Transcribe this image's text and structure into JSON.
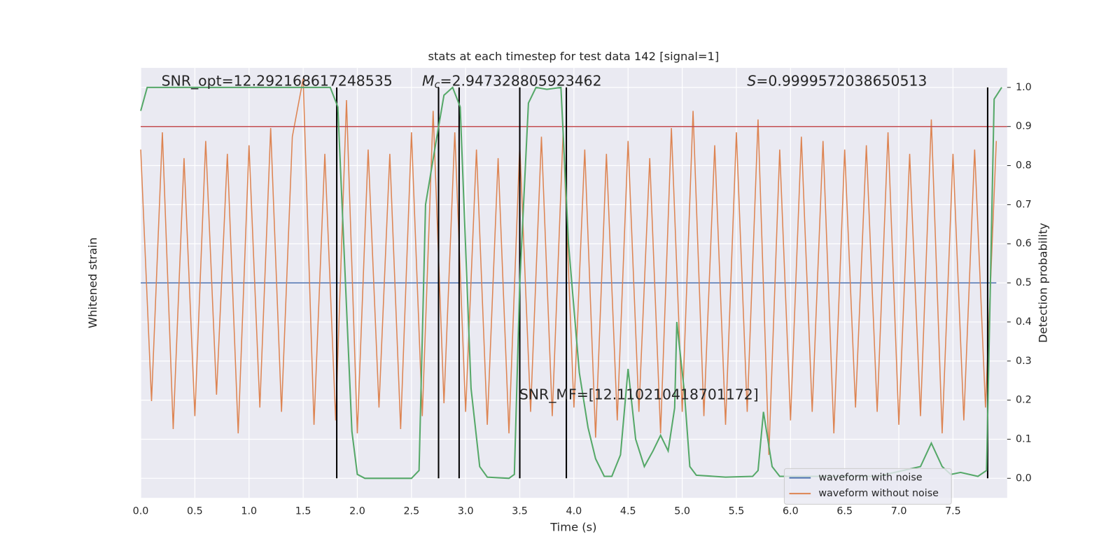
{
  "chart_data": {
    "type": "line",
    "title": "stats at each timestep for test data 142 [signal=1]",
    "xlabel": "Time (s)",
    "ylabel": "Whitened strain",
    "y2label": "Detection probability",
    "xlim": [
      0,
      8
    ],
    "ylim": [
      -1,
      1
    ],
    "y2lim": [
      -0.05,
      1.05
    ],
    "xticks": [
      {
        "value": 0,
        "label": "0.0"
      },
      0.5,
      {
        "value": 1,
        "label": "1.0"
      },
      1.5,
      {
        "value": 2,
        "label": "2.0"
      },
      2.5,
      {
        "value": 3,
        "label": "3.0"
      },
      3.5,
      {
        "value": 4,
        "label": "4.0"
      },
      4.5,
      {
        "value": 5,
        "label": "5.0"
      },
      5.5,
      {
        "value": 6,
        "label": "6.0"
      },
      6.5,
      {
        "value": 7,
        "label": "7.0"
      },
      7.5
    ],
    "y2ticks": [
      {
        "value": 0,
        "label": "0.0"
      },
      0.1,
      0.2,
      0.3,
      0.4,
      0.5,
      0.6,
      0.7,
      0.8,
      0.9,
      {
        "value": 1,
        "label": "1.0"
      }
    ],
    "grid": true,
    "background": "#eaeaf2",
    "legend": "lower right",
    "x": [
      0,
      0.1,
      0.2,
      0.3,
      0.4,
      0.5,
      0.6,
      0.7,
      0.8,
      0.9,
      1,
      1.1,
      1.2,
      1.3,
      1.4,
      1.5,
      1.6,
      1.7,
      1.8,
      1.9,
      2,
      2.1,
      2.2,
      2.3,
      2.4,
      2.5,
      2.6,
      2.7,
      2.8,
      2.9,
      3,
      3.1,
      3.2,
      3.3,
      3.4,
      3.5,
      3.6,
      3.7,
      3.8,
      3.9,
      4,
      4.1,
      4.2,
      4.3,
      4.4,
      4.5,
      4.6,
      4.7,
      4.8,
      4.9,
      5,
      5.1,
      5.2,
      5.3,
      5.4,
      5.5,
      5.6,
      5.7,
      5.8,
      5.9,
      6,
      6.1,
      6.2,
      6.3,
      6.4,
      6.5,
      6.6,
      6.7,
      6.8,
      6.9,
      7,
      7.1,
      7.2,
      7.3,
      7.4,
      7.5,
      7.6,
      7.7,
      7.8,
      7.9
    ],
    "series": [
      {
        "name": "waveform with noise",
        "color": "#4c72b0",
        "values": [
          0,
          0,
          0,
          0,
          0,
          0,
          0,
          0,
          0,
          0,
          0,
          0,
          0,
          0,
          0,
          0,
          0,
          0,
          0,
          0,
          0,
          0,
          0,
          0,
          0,
          0,
          0,
          0,
          0,
          0,
          0,
          0,
          0,
          0,
          0,
          0,
          0,
          0,
          0,
          0,
          0,
          0,
          0,
          0,
          0,
          0,
          0,
          0,
          0,
          0,
          0,
          0,
          0,
          0,
          0,
          0,
          0,
          0,
          0,
          0,
          0,
          0,
          0,
          0,
          0,
          0,
          0,
          0,
          0,
          0,
          0,
          0,
          0,
          0,
          0,
          0,
          0,
          0,
          0,
          0
        ]
      },
      {
        "name": "waveform without noise",
        "color": "#dd8452",
        "values": [
          0.62,
          -0.55,
          0.7,
          -0.68,
          0.58,
          -0.62,
          0.66,
          -0.52,
          0.6,
          -0.7,
          0.64,
          -0.58,
          0.72,
          -0.6,
          0.68,
          0.95,
          -0.66,
          0.6,
          -0.64,
          0.85,
          -0.7,
          0.62,
          -0.58,
          0.6,
          -0.68,
          0.7,
          -0.62,
          0.8,
          -0.56,
          0.7,
          -0.6,
          0.62,
          -0.66,
          0.58,
          -0.7,
          0.64,
          -0.6,
          0.68,
          -0.62,
          0.7,
          -0.58,
          0.62,
          -0.72,
          0.6,
          -0.64,
          0.66,
          -0.6,
          0.58,
          -0.7,
          0.72,
          -0.6,
          0.8,
          -0.62,
          0.64,
          -0.66,
          0.7,
          -0.6,
          0.76,
          -0.8,
          0.62,
          -0.64,
          0.68,
          -0.6,
          0.66,
          -0.7,
          0.62,
          -0.58,
          0.64,
          -0.6,
          0.7,
          -0.66,
          0.6,
          -0.62,
          0.76,
          -0.7,
          0.6,
          -0.64,
          0.62,
          -0.58,
          0.66
        ]
      }
    ],
    "probability": {
      "color": "#55a868",
      "x": [
        0,
        0.06,
        1.75,
        1.82,
        1.95,
        2.0,
        2.07,
        2.5,
        2.57,
        2.63,
        2.72,
        2.8,
        2.88,
        2.95,
        3.05,
        3.13,
        3.2,
        3.4,
        3.45,
        3.5,
        3.58,
        3.65,
        3.75,
        3.88,
        3.95,
        4.05,
        4.13,
        4.2,
        4.28,
        4.35,
        4.43,
        4.5,
        4.57,
        4.65,
        4.73,
        4.8,
        4.87,
        4.93,
        4.95,
        5.02,
        5.07,
        5.13,
        5.4,
        5.65,
        5.7,
        5.75,
        5.83,
        5.9,
        6.8,
        7.2,
        7.3,
        7.4,
        7.48,
        7.57,
        7.73,
        7.81,
        7.88,
        7.95
      ],
      "values": [
        0.94,
        1.0,
        1.0,
        0.95,
        0.12,
        0.01,
        0.0,
        0.0,
        0.02,
        0.7,
        0.85,
        0.98,
        1.0,
        0.95,
        0.23,
        0.03,
        0.003,
        0.0,
        0.01,
        0.5,
        0.96,
        1.0,
        0.995,
        1.0,
        0.6,
        0.27,
        0.13,
        0.05,
        0.005,
        0.005,
        0.06,
        0.28,
        0.1,
        0.03,
        0.07,
        0.11,
        0.07,
        0.18,
        0.4,
        0.22,
        0.03,
        0.008,
        0.003,
        0.005,
        0.02,
        0.17,
        0.03,
        0.005,
        0.005,
        0.03,
        0.09,
        0.03,
        0.01,
        0.015,
        0.005,
        0.02,
        0.97,
        1.0
      ]
    },
    "threshold": {
      "value": 0.9,
      "color": "#c44e52"
    },
    "vlines": {
      "x": [
        1.81,
        2.75,
        2.94,
        3.5,
        3.93,
        7.82
      ],
      "color": "#000000"
    },
    "annotations": [
      {
        "text": "SNR_opt=12.292168617248535"
      },
      {
        "symbol": "M",
        "subscript": "c",
        "text": "=2.947328805923462"
      },
      {
        "symbol": "S",
        "text": "=0.9999572038650513"
      },
      {
        "text": "SNR_MF=[12.110210418701172]"
      }
    ]
  }
}
